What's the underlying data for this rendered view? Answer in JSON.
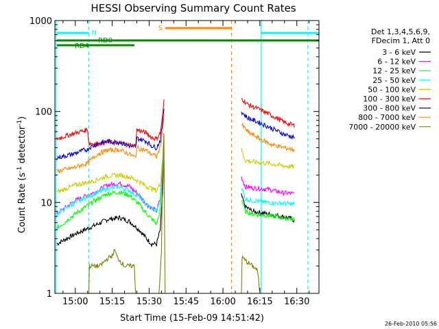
{
  "chart_data": {
    "type": "line",
    "title": "HESSI Observing Summary Count Rates",
    "xlabel": "Start Time (15-Feb-09 14:51:42)",
    "ylabel_parts": [
      "Count Rate (s",
      "-1",
      " detector",
      "-1",
      ")"
    ],
    "ylabel": "Count Rate (s-1 detector-1)",
    "y_scale": "log",
    "xlim_min": [
      -8.3,
      99.0
    ],
    "ylim": [
      1,
      1000
    ],
    "x_ticks": [
      {
        "min": 0,
        "label": "15:00"
      },
      {
        "min": 15,
        "label": "15:15"
      },
      {
        "min": 30,
        "label": "15:30"
      },
      {
        "min": 45,
        "label": "15:45"
      },
      {
        "min": 60,
        "label": "16:00"
      },
      {
        "min": 75,
        "label": "16:15"
      },
      {
        "min": 90,
        "label": "16:30"
      }
    ],
    "y_ticks": [
      {
        "value": 1,
        "label": "1"
      },
      {
        "value": 10,
        "label": "10"
      },
      {
        "value": 100,
        "label": "100"
      },
      {
        "value": 1000,
        "label": "1000"
      }
    ],
    "legend_header": [
      "Det 1,3,4,5,6,9,",
      "FDecim 1, Att 0"
    ],
    "legend_position": "right",
    "series": [
      {
        "name": "3 - 6 keV",
        "color": "#000000",
        "segments": [
          [
            [
              -7.5,
              3.5
            ],
            [
              0,
              4.5
            ],
            [
              8,
              5.6
            ],
            [
              13,
              6.5
            ],
            [
              18,
              6.8
            ],
            [
              22,
              6.2
            ],
            [
              26,
              5
            ],
            [
              29,
              4
            ],
            [
              31,
              3.5
            ],
            [
              33,
              3.5
            ],
            [
              34.5,
              5
            ],
            [
              35.5,
              13
            ],
            [
              36,
              35
            ]
          ],
          [
            [
              67.5,
              12
            ],
            [
              69,
              9
            ],
            [
              72,
              8
            ],
            [
              78,
              7.5
            ],
            [
              84,
              7
            ],
            [
              88,
              6.6
            ],
            [
              89,
              6.3
            ]
          ]
        ]
      },
      {
        "name": "6 - 12 keV",
        "color": "#ff00ff",
        "segments": [
          [
            [
              -7.5,
              7.5
            ],
            [
              0,
              10.5
            ],
            [
              8,
              13
            ],
            [
              13,
              15.5
            ],
            [
              18,
              16.2
            ],
            [
              22,
              15
            ],
            [
              26,
              12
            ],
            [
              29,
              9.5
            ],
            [
              33,
              8
            ],
            [
              34.5,
              11
            ],
            [
              35.5,
              25
            ],
            [
              36,
              55
            ]
          ],
          [
            [
              67.5,
              19
            ],
            [
              69,
              15
            ],
            [
              72,
              14.5
            ],
            [
              78,
              14
            ],
            [
              84,
              12.8
            ],
            [
              89,
              12.5
            ]
          ]
        ]
      },
      {
        "name": "12 - 25 keV",
        "color": "#00ff00",
        "segments": [
          [
            [
              -7.5,
              5.2
            ],
            [
              0,
              7.5
            ],
            [
              8,
              10.5
            ],
            [
              13,
              12.5
            ],
            [
              18,
              13
            ],
            [
              22,
              12
            ],
            [
              26,
              9.5
            ],
            [
              29,
              7.5
            ],
            [
              33,
              5.8
            ],
            [
              34.5,
              8
            ],
            [
              35.5,
              18
            ],
            [
              36,
              40
            ]
          ],
          [
            [
              67.5,
              11
            ],
            [
              69,
              8
            ],
            [
              72,
              7.5
            ],
            [
              78,
              7.2
            ],
            [
              84,
              6.8
            ],
            [
              89,
              6.5
            ]
          ]
        ]
      },
      {
        "name": "25 - 50 keV",
        "color": "#00ffff",
        "segments": [
          [
            [
              -7.5,
              7.5
            ],
            [
              0,
              10
            ],
            [
              8,
              12.5
            ],
            [
              13,
              14.2
            ],
            [
              18,
              14.8
            ],
            [
              22,
              13.5
            ],
            [
              26,
              11.5
            ],
            [
              29,
              9.5
            ],
            [
              33,
              8
            ],
            [
              34.5,
              10
            ],
            [
              35.5,
              22
            ],
            [
              36,
              45
            ]
          ],
          [
            [
              67.5,
              15
            ],
            [
              69,
              11
            ],
            [
              72,
              10.5
            ],
            [
              78,
              10
            ],
            [
              84,
              9.8
            ],
            [
              89,
              9.6
            ]
          ]
        ]
      },
      {
        "name": "50 - 100 keV",
        "color": "#cccc00",
        "segments": [
          [
            [
              -7.5,
              13
            ],
            [
              0,
              15.5
            ],
            [
              8,
              17.5
            ],
            [
              13,
              19.5
            ],
            [
              18,
              20
            ],
            [
              22,
              19
            ],
            [
              26,
              17
            ],
            [
              29,
              15
            ],
            [
              33,
              13.5
            ],
            [
              34.5,
              16
            ],
            [
              35.5,
              30
            ],
            [
              36,
              60
            ]
          ],
          [
            [
              67.5,
              38
            ],
            [
              69,
              29
            ],
            [
              72,
              28
            ],
            [
              78,
              27
            ],
            [
              84,
              25.5
            ],
            [
              89,
              24.5
            ]
          ]
        ]
      },
      {
        "name": "100 - 300 keV",
        "color": "#ff0000",
        "segments": [
          [
            [
              -7.5,
              50
            ],
            [
              -1,
              57
            ],
            [
              4,
              62
            ],
            [
              5,
              64
            ],
            [
              5.5,
              45
            ],
            [
              8,
              44
            ],
            [
              13,
              46
            ],
            [
              18,
              45
            ],
            [
              22,
              43
            ],
            [
              24.5,
              42
            ],
            [
              25,
              63
            ],
            [
              29,
              58
            ],
            [
              31,
              52
            ],
            [
              33,
              50
            ],
            [
              34.5,
              58
            ],
            [
              35.5,
              90
            ],
            [
              36,
              130
            ]
          ],
          [
            [
              67.5,
              140
            ],
            [
              70,
              120
            ],
            [
              75,
              105
            ],
            [
              80,
              90
            ],
            [
              85,
              76
            ],
            [
              89,
              70
            ]
          ]
        ]
      },
      {
        "name": "300 - 800 keV",
        "color": "#0000cc",
        "segments": [
          [
            [
              -7.5,
              31
            ],
            [
              -1,
              34
            ],
            [
              4,
              38
            ],
            [
              5,
              38
            ],
            [
              5.5,
              40
            ],
            [
              9,
              44
            ],
            [
              13,
              47
            ],
            [
              18,
              46
            ],
            [
              22,
              42
            ],
            [
              24.5,
              40
            ],
            [
              25,
              51
            ],
            [
              29,
              47
            ],
            [
              31,
              42
            ],
            [
              33,
              40
            ],
            [
              34.5,
              48
            ],
            [
              35.5,
              75
            ],
            [
              36,
              110
            ]
          ],
          [
            [
              67.5,
              100
            ],
            [
              70,
              85
            ],
            [
              75,
              75
            ],
            [
              80,
              65
            ],
            [
              85,
              56
            ],
            [
              89,
              52
            ]
          ]
        ]
      },
      {
        "name": "800 - 7000 keV",
        "color": "#ff8800",
        "segments": [
          [
            [
              -7.5,
              22
            ],
            [
              -1,
              24
            ],
            [
              4,
              26.5
            ],
            [
              5,
              27
            ],
            [
              5.5,
              28
            ],
            [
              9,
              34
            ],
            [
              13,
              37.5
            ],
            [
              18,
              38
            ],
            [
              22,
              34
            ],
            [
              24.5,
              31
            ],
            [
              25,
              40
            ],
            [
              29,
              37
            ],
            [
              31,
              34
            ],
            [
              33,
              32
            ],
            [
              34.5,
              40
            ],
            [
              35.5,
              62
            ],
            [
              36,
              95
            ]
          ],
          [
            [
              67.5,
              72
            ],
            [
              70,
              60
            ],
            [
              75,
              50
            ],
            [
              80,
              43
            ],
            [
              85,
              40
            ],
            [
              89,
              38
            ]
          ]
        ]
      },
      {
        "name": "7000 - 20000 keV",
        "color": "#808000",
        "segments": [
          [
            [
              5.5,
              1
            ],
            [
              5.6,
              2
            ],
            [
              10,
              2
            ],
            [
              13,
              2.4
            ],
            [
              15,
              2.6
            ],
            [
              16,
              3
            ],
            [
              17,
              2.5
            ],
            [
              20,
              2
            ],
            [
              24,
              2
            ],
            [
              24.5,
              1
            ]
          ],
          [
            [
              34,
              1
            ],
            [
              35,
              3
            ],
            [
              35.5,
              25
            ],
            [
              36,
              55
            ],
            [
              36.5,
              1
            ]
          ],
          [
            [
              67.5,
              1
            ],
            [
              67.6,
              2.5
            ],
            [
              70,
              2.2
            ],
            [
              72,
              2
            ],
            [
              74,
              1.8
            ],
            [
              75,
              1
            ]
          ]
        ]
      }
    ],
    "flag_bars": [
      {
        "label": "N",
        "color": "#00ffff",
        "row": 0,
        "segments": [
          [
            -7.5,
            5.5
          ],
          [
            75.5,
            99
          ]
        ]
      },
      {
        "label": "S",
        "color": "#ff8800",
        "row": 1,
        "segments": [
          [
            36.5,
            63.5
          ]
        ]
      },
      {
        "label": "RD0",
        "color": "#008800",
        "row": 2,
        "segments": [
          [
            -7.5,
            99
          ]
        ]
      },
      {
        "label": "RD4",
        "color": "#008800",
        "row": 3,
        "segments": [
          [
            -7.5,
            24
          ]
        ]
      }
    ],
    "vertical_lines": [
      {
        "min": -7.8,
        "color": "#00ffff",
        "style": "solid"
      },
      {
        "min": 5.5,
        "color": "#00ffff",
        "style": "dashed"
      },
      {
        "min": 75.5,
        "color": "#00ffff",
        "style": "solid"
      },
      {
        "min": 94.5,
        "color": "#00ffff",
        "style": "dashed"
      },
      {
        "min": 63.5,
        "color": "#ff8800",
        "style": "dashed"
      }
    ],
    "timestamp": "26-Feb-2010 05:56"
  }
}
